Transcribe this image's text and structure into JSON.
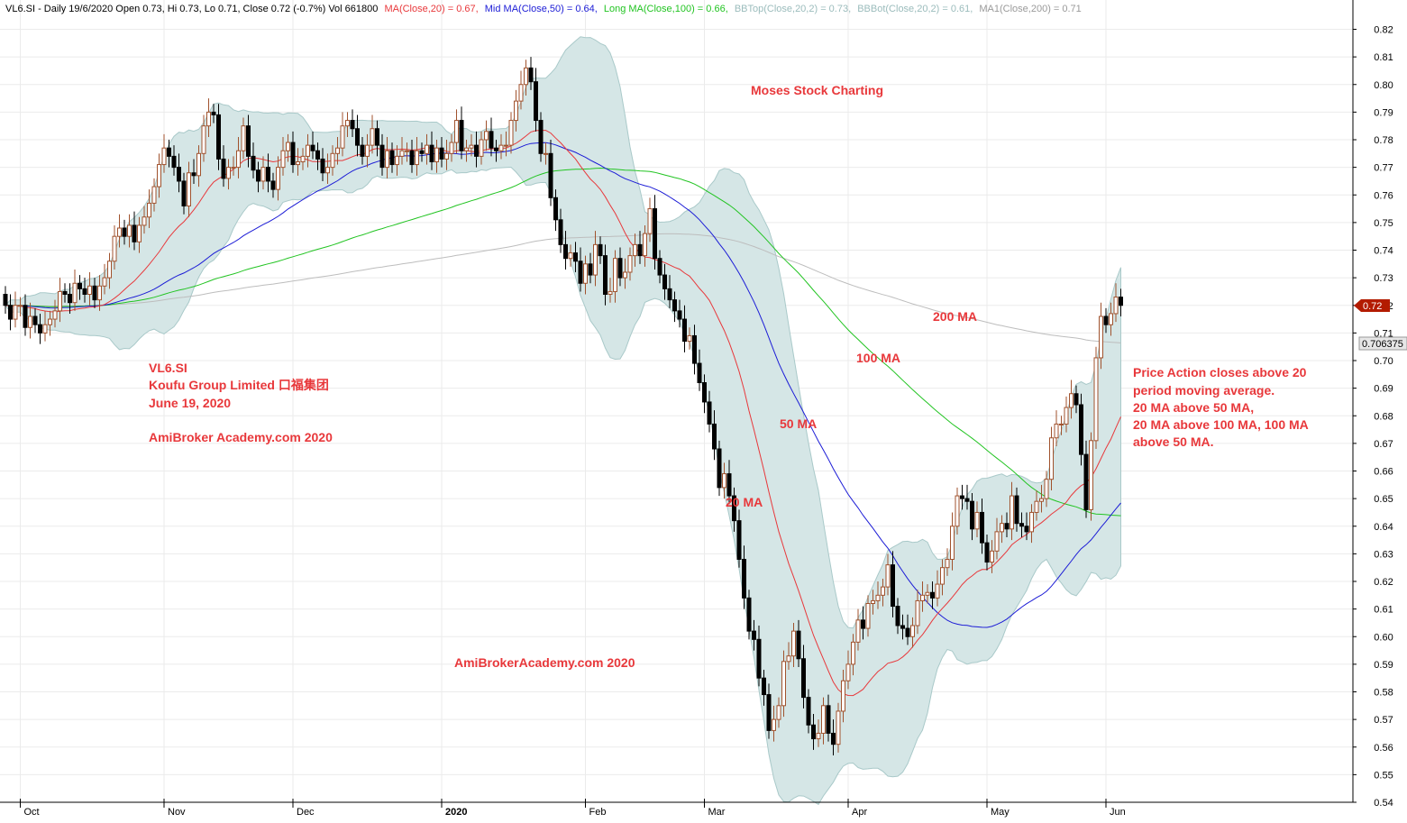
{
  "header": {
    "symbol_info": "VL6.SI - Daily 19/6/2020 Open 0.73, Hi 0.73, Lo 0.71, Close 0.72 (-0.7%) Vol 661800",
    "ma20_label": "MA(Close,20) = 0.67,",
    "ma50_label": "Mid MA(Close,50) = 0.64,",
    "ma100_label": "Long MA(Close,100) = 0.66,",
    "bbtop_label": "BBTop(Close,20,2) = 0.73,",
    "bbbot_label": "BBBot(Close,20,2) = 0.61,",
    "ma200_label": "MA1(Close,200) = 0.71"
  },
  "colors": {
    "ma20": "#e8383b",
    "ma50": "#1c1cd6",
    "ma100": "#22c422",
    "ma200": "#bdbdbd",
    "band_fill": "#d5e6e6",
    "band_edge": "#a9c9c9",
    "bull_body": "#ffffff",
    "bull_edge": "#a0522d",
    "bear_body": "#000000",
    "annotation": "#e8383b",
    "info_label": "#1c1cd6",
    "last_price_tag": "#b31b00"
  },
  "annotations": {
    "title_line1": "VL6.SI",
    "title_line2": "Koufu Group Limited  口福集团",
    "title_line3": "June 19, 2020",
    "watermark1": "AmiBroker Academy.com  2020",
    "watermark2": "AmiBrokerAcademy.com  2020",
    "moses": "Moses Stock Charting",
    "label_200": "200 MA",
    "label_100": "100 MA",
    "label_50": "50 MA",
    "label_20": "20 MA",
    "note_line1": "Price Action closes above 20",
    "note_line2": "period moving average.",
    "note_line3": "20 MA above 50 MA,",
    "note_line4": "20 MA above 100 MA, 100 MA",
    "note_line5": "above 50 MA."
  },
  "price_tags": {
    "last_close": "0.72",
    "ma200_value": "0.706375"
  },
  "chart_data": {
    "type": "candlestick",
    "symbol": "VL6.SI",
    "ylim": [
      0.54,
      0.82
    ],
    "y_ticks": [
      "0.82",
      "0.81",
      "0.80",
      "0.79",
      "0.78",
      "0.77",
      "0.76",
      "0.75",
      "0.74",
      "0.73",
      "0.72",
      "0.71",
      "0.70",
      "0.69",
      "0.68",
      "0.67",
      "0.66",
      "0.65",
      "0.64",
      "0.63",
      "0.62",
      "0.61",
      "0.60",
      "0.59",
      "0.58",
      "0.57",
      "0.56",
      "0.55",
      "0.54"
    ],
    "x_ticks": [
      {
        "label": "Oct",
        "bar": 3,
        "bold": false
      },
      {
        "label": "Nov",
        "bar": 32,
        "bold": false
      },
      {
        "label": "Dec",
        "bar": 58,
        "bold": false
      },
      {
        "label": "2020",
        "bar": 88,
        "bold": true
      },
      {
        "label": "Feb",
        "bar": 117,
        "bold": false
      },
      {
        "label": "Mar",
        "bar": 141,
        "bold": false
      },
      {
        "label": "Apr",
        "bar": 170,
        "bold": false
      },
      {
        "label": "May",
        "bar": 198,
        "bold": false
      },
      {
        "label": "Jun",
        "bar": 222,
        "bold": false
      }
    ],
    "grid": true,
    "bars_close": [
      0.72,
      0.715,
      0.72,
      0.72,
      0.712,
      0.716,
      0.713,
      0.71,
      0.713,
      0.715,
      0.718,
      0.725,
      0.724,
      0.721,
      0.728,
      0.726,
      0.724,
      0.727,
      0.722,
      0.727,
      0.73,
      0.736,
      0.745,
      0.748,
      0.745,
      0.749,
      0.743,
      0.749,
      0.752,
      0.757,
      0.763,
      0.771,
      0.777,
      0.774,
      0.77,
      0.765,
      0.756,
      0.768,
      0.767,
      0.775,
      0.785,
      0.79,
      0.789,
      0.773,
      0.766,
      0.77,
      0.77,
      0.776,
      0.785,
      0.774,
      0.769,
      0.765,
      0.77,
      0.765,
      0.762,
      0.77,
      0.776,
      0.779,
      0.771,
      0.772,
      0.774,
      0.778,
      0.776,
      0.773,
      0.768,
      0.77,
      0.775,
      0.777,
      0.785,
      0.787,
      0.784,
      0.778,
      0.774,
      0.778,
      0.784,
      0.778,
      0.77,
      0.776,
      0.771,
      0.774,
      0.776,
      0.776,
      0.771,
      0.776,
      0.775,
      0.778,
      0.772,
      0.777,
      0.773,
      0.775,
      0.779,
      0.787,
      0.776,
      0.777,
      0.778,
      0.774,
      0.78,
      0.783,
      0.777,
      0.776,
      0.778,
      0.778,
      0.787,
      0.794,
      0.8,
      0.806,
      0.801,
      0.787,
      0.775,
      0.775,
      0.759,
      0.751,
      0.742,
      0.737,
      0.739,
      0.736,
      0.728,
      0.735,
      0.731,
      0.742,
      0.738,
      0.724,
      0.725,
      0.737,
      0.73,
      0.732,
      0.738,
      0.742,
      0.738,
      0.746,
      0.755,
      0.737,
      0.731,
      0.726,
      0.722,
      0.718,
      0.715,
      0.707,
      0.709,
      0.699,
      0.692,
      0.685,
      0.677,
      0.668,
      0.654,
      0.659,
      0.651,
      0.642,
      0.628,
      0.614,
      0.602,
      0.599,
      0.585,
      0.579,
      0.566,
      0.57,
      0.575,
      0.591,
      0.593,
      0.602,
      0.592,
      0.578,
      0.568,
      0.563,
      0.565,
      0.575,
      0.565,
      0.561,
      0.573,
      0.584,
      0.59,
      0.598,
      0.606,
      0.603,
      0.612,
      0.613,
      0.615,
      0.618,
      0.626,
      0.611,
      0.604,
      0.603,
      0.6,
      0.604,
      0.613,
      0.615,
      0.616,
      0.614,
      0.619,
      0.625,
      0.628,
      0.64,
      0.651,
      0.65,
      0.649,
      0.639,
      0.645,
      0.634,
      0.627,
      0.631,
      0.638,
      0.641,
      0.639,
      0.651,
      0.641,
      0.64,
      0.638,
      0.645,
      0.649,
      0.65,
      0.657,
      0.672,
      0.677,
      0.677,
      0.683,
      0.688,
      0.684,
      0.666,
      0.646,
      0.671,
      0.701,
      0.716,
      0.713,
      0.717,
      0.723,
      0.72
    ],
    "series": [
      {
        "name": "MA(Close,20)",
        "value": 0.67
      },
      {
        "name": "Mid MA(Close,50)",
        "value": 0.64
      },
      {
        "name": "Long MA(Close,100)",
        "value": 0.66
      },
      {
        "name": "BBTop(Close,20,2)",
        "value": 0.73
      },
      {
        "name": "BBBot(Close,20,2)",
        "value": 0.61
      },
      {
        "name": "MA1(Close,200)",
        "value": 0.71
      }
    ],
    "last": {
      "open": 0.73,
      "high": 0.73,
      "low": 0.71,
      "close": 0.72,
      "change_pct": -0.7,
      "volume": 661800
    }
  }
}
